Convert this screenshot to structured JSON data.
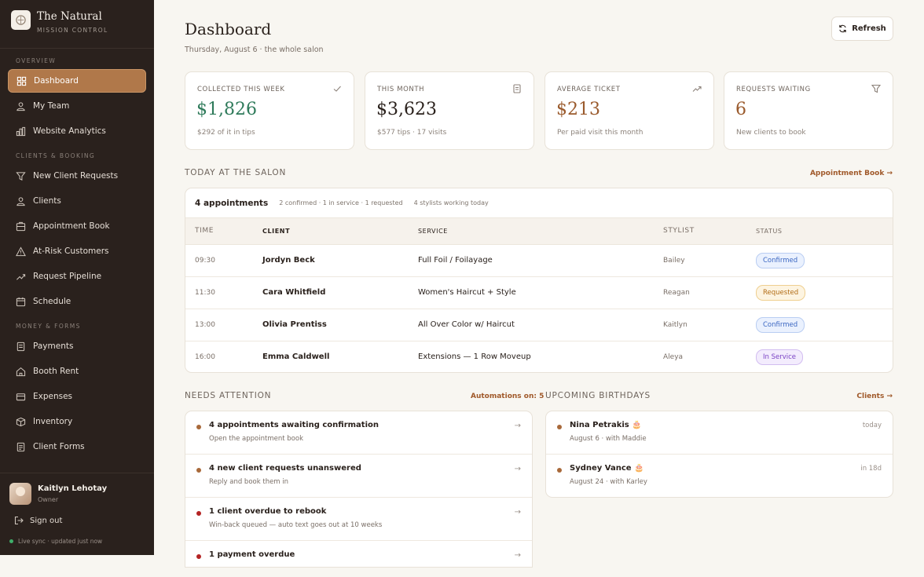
{
  "brand": {
    "title": "The Natural",
    "subtitle": "MISSION CONTROL"
  },
  "sidebar": {
    "sections": [
      {
        "label": "OVERVIEW",
        "items": [
          {
            "label": "Dashboard",
            "icon": "dashboard-icon"
          },
          {
            "label": "My Team",
            "icon": "team-icon"
          },
          {
            "label": "Website Analytics",
            "icon": "chart-icon"
          }
        ]
      },
      {
        "label": "CLIENTS & BOOKING",
        "items": [
          {
            "label": "New Client Requests",
            "icon": "filter-icon"
          },
          {
            "label": "Clients",
            "icon": "clients-icon"
          },
          {
            "label": "Appointment Book",
            "icon": "book-icon"
          },
          {
            "label": "At-Risk Customers",
            "icon": "warning-icon"
          },
          {
            "label": "Request Pipeline",
            "icon": "trend-icon"
          },
          {
            "label": "Schedule",
            "icon": "calendar-icon"
          }
        ]
      },
      {
        "label": "MONEY & FORMS",
        "items": [
          {
            "label": "Payments",
            "icon": "receipt-icon"
          },
          {
            "label": "Booth Rent",
            "icon": "home-icon"
          },
          {
            "label": "Expenses",
            "icon": "card-icon"
          },
          {
            "label": "Inventory",
            "icon": "box-icon"
          },
          {
            "label": "Client Forms",
            "icon": "form-icon"
          }
        ]
      }
    ],
    "user": {
      "name": "Kaitlyn Lehotay",
      "role": "Owner"
    },
    "signout": "Sign out",
    "live": "Live sync · updated just now"
  },
  "header": {
    "title": "Dashboard",
    "subtitle": "Thursday, August 6 · the whole salon",
    "refresh": "Refresh"
  },
  "stats": [
    {
      "label": "COLLECTED THIS WEEK",
      "value": "$1,826",
      "note": "$292 of it in tips",
      "icon": "check-icon",
      "color": "#2e7a5a"
    },
    {
      "label": "THIS MONTH",
      "value": "$3,623",
      "note": "$577 tips · 17 visits",
      "icon": "receipt-icon",
      "color": "#2a211c"
    },
    {
      "label": "AVERAGE TICKET",
      "value": "$213",
      "note": "Per paid visit this month",
      "icon": "trend-up-icon",
      "color": "#9a5a2c"
    },
    {
      "label": "REQUESTS WAITING",
      "value": "6",
      "note": "New clients to book",
      "icon": "filter-icon",
      "color": "#9a5a2c"
    }
  ],
  "today": {
    "heading": "TODAY AT THE SALON",
    "link": "Appointment Book →",
    "count": "4 appointments",
    "meta": "2 confirmed · 1 in service · 1 requested",
    "meta2": "4 stylists working today",
    "columns": [
      "TIME",
      "CLIENT",
      "SERVICE",
      "STYLIST",
      "STATUS"
    ],
    "rows": [
      {
        "time": "09:30",
        "client": "Jordyn Beck",
        "service": "Full Foil / Foilayage",
        "stylist": "Bailey",
        "status": "Confirmed"
      },
      {
        "time": "11:30",
        "client": "Cara Whitfield",
        "service": "Women's Haircut + Style",
        "stylist": "Reagan",
        "status": "Requested"
      },
      {
        "time": "13:00",
        "client": "Olivia Prentiss",
        "service": "All Over Color w/ Haircut",
        "stylist": "Kaitlyn",
        "status": "Confirmed"
      },
      {
        "time": "16:00",
        "client": "Emma Caldwell",
        "service": "Extensions — 1 Row Moveup",
        "stylist": "Aleya",
        "status": "In Service"
      }
    ]
  },
  "attention": {
    "heading": "NEEDS ATTENTION",
    "link": "Automations on: 5",
    "items": [
      {
        "title": "4 appointments awaiting confirmation",
        "sub": "Open the appointment book",
        "color": "#a8693a"
      },
      {
        "title": "4 new client requests unanswered",
        "sub": "Reply and book them in",
        "color": "#a8693a"
      },
      {
        "title": "1 client overdue to rebook",
        "sub": "Win-back queued — auto text goes out at 10 weeks",
        "color": "#b42424"
      },
      {
        "title": "1 payment overdue",
        "sub": "",
        "color": "#b42424"
      }
    ]
  },
  "birthdays": {
    "heading": "UPCOMING BIRTHDAYS",
    "link": "Clients →",
    "items": [
      {
        "name": "Nina Petrakis 🎂",
        "sub": "August 6 · with Maddie",
        "when": "today"
      },
      {
        "name": "Sydney Vance 🎂",
        "sub": "August 24 · with Karley",
        "when": "in 18d"
      }
    ]
  }
}
